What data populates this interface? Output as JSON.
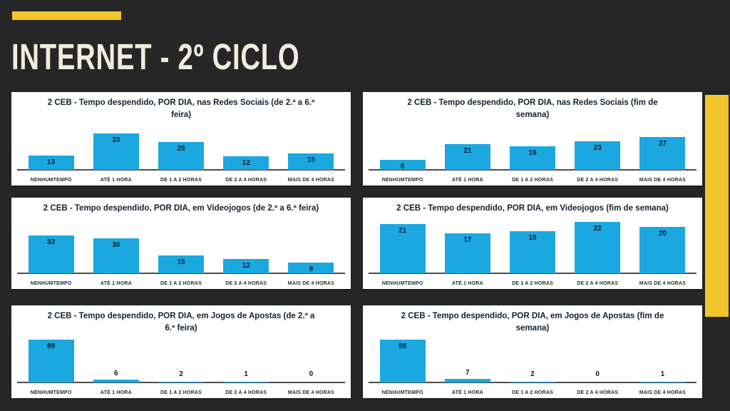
{
  "slide": {
    "title": "INTERNET - 2º CICLO"
  },
  "colors": {
    "background": "#262626",
    "accent_yellow": "#F3C52D",
    "title_text": "#F1EDDE",
    "panel_background": "#FFFFFF",
    "bar_blue": "#1BA8E0",
    "chart_title_text": "#16212E",
    "value_label_text": "#0D1B28",
    "axis_line": "#4D4D4D",
    "axis_label_text": "#2B2B2B"
  },
  "chart_data": [
    {
      "type": "bar",
      "title": "2 CEB - Tempo despendido, POR DIA, nas Redes Sociais (de 2.ª a 6.ª feira)",
      "categories": [
        "NENHUMTEMPO",
        "ATÉ 1 HORA",
        "DE 1 A 2 HORAS",
        "DE 2 A 4 HORAS",
        "MAIS DE 4 HORAS"
      ],
      "values": [
        13,
        33,
        25,
        12,
        15
      ],
      "ylim": [
        0,
        40
      ],
      "grid": false,
      "legend": "none",
      "data_labels": "inside-end"
    },
    {
      "type": "bar",
      "title": "2 CEB - Tempo despendido, POR DIA, nas Redes Sociais (fim de semana)",
      "categories": [
        "NENHUMTEMPO",
        "ATÉ 1 HORA",
        "DE 1 A 2 HORAS",
        "DE 2 A 4 HORAS",
        "MAIS DE 4 HORAS"
      ],
      "values": [
        8,
        21,
        19,
        23,
        27
      ],
      "ylim": [
        0,
        36
      ],
      "grid": false,
      "legend": "none",
      "data_labels": "inside-end"
    },
    {
      "type": "bar",
      "title": "2 CEB - Tempo despendido, POR DIA, em Videojogos (de 2.ª a 6.ª feira)",
      "categories": [
        "NENHUMTEMPO",
        "ATÉ 1 HORA",
        "DE 1 A 2 HORAS",
        "DE 2 A 4 HORAS",
        "MAIS DE 4 HORAS"
      ],
      "values": [
        32,
        30,
        15,
        12,
        9
      ],
      "ylim": [
        0,
        40
      ],
      "grid": false,
      "legend": "none",
      "data_labels": "inside-end"
    },
    {
      "type": "bar",
      "title": "2 CEB - Tempo despendido, POR DIA, em Videojogos (fim de semana)",
      "categories": [
        "NENHUMTEMPO",
        "ATÉ 1 HORA",
        "DE 1 A 2 HORAS",
        "DE 2 A 4 HORAS",
        "MAIS DE 4 HORAS"
      ],
      "values": [
        21,
        17,
        18,
        22,
        20
      ],
      "ylim": [
        0,
        26
      ],
      "grid": false,
      "legend": "none",
      "data_labels": "inside-end"
    },
    {
      "type": "bar",
      "title": "2 CEB - Tempo despendido, POR DIA, em Jogos de Apostas (de 2.ª a 6.ª feira)",
      "categories": [
        "NENHUMTEMPO",
        "ATÉ 1 HORA",
        "DE 1 A 2 HORAS",
        "DE 2 A 4 HORAS",
        "MAIS DE 4 HORAS"
      ],
      "values": [
        89,
        6,
        2,
        1,
        0
      ],
      "ylim": [
        0,
        100
      ],
      "grid": false,
      "legend": "none",
      "data_labels": "inside-end"
    },
    {
      "type": "bar",
      "title": "2 CEB - Tempo despendido, POR DIA, em Jogos de Apostas (fim de semana)",
      "categories": [
        "NENHUMTEMPO",
        "ATÉ 1 HORA",
        "DE 1 A 2 HORAS",
        "DE 2 A 4 HORAS",
        "MAIS DE 4 HORAS"
      ],
      "values": [
        88,
        7,
        2,
        0,
        1
      ],
      "ylim": [
        0,
        100
      ],
      "grid": false,
      "legend": "none",
      "data_labels": "inside-end"
    }
  ]
}
